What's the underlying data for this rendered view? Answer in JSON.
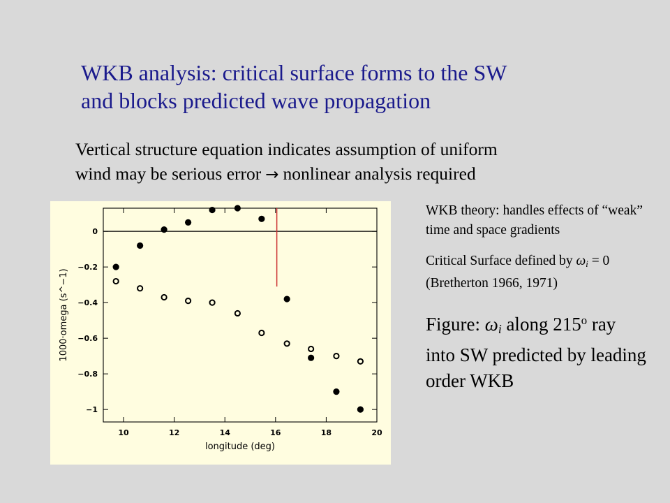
{
  "slide": {
    "title_line1": "WKB analysis: critical surface forms to the SW",
    "title_line2": "and blocks predicted wave propagation",
    "subtitle_line1": "Vertical structure equation indicates assumption of uniform",
    "subtitle_line2_start": "wind may be serious error",
    "subtitle_arrow": "→",
    "subtitle_line2_end": "nonlinear analysis required"
  },
  "notes": {
    "wkb_theory": "WKB theory: handles effects of “weak” time and space gradients",
    "critical_prefix": "Critical Surface defined by",
    "critical_omega": "ω",
    "critical_subscript": "i",
    "critical_suffix": "= 0 (Bretherton 1966, 1971)",
    "figure_prefix": "Figure:",
    "figure_omega": "ω",
    "figure_subscript": "i",
    "figure_middle": "along 215",
    "figure_superscript": "o",
    "figure_suffix": "ray into SW predicted by leading order WKB"
  },
  "colors": {
    "background": "#d9d9d9",
    "title": "#1a1a8c",
    "panel": "#fffde0",
    "critical_line": "#cc3333"
  },
  "chart_data": {
    "type": "scatter",
    "xlabel": "longitude (deg)",
    "ylabel": "1000·omega (s^−1)",
    "xlim": [
      9.2,
      20
    ],
    "ylim": [
      -1.07,
      0.13
    ],
    "xticks": [
      10,
      12,
      14,
      16,
      18,
      20
    ],
    "yticks": [
      0,
      -0.2,
      -0.4,
      -0.6,
      -0.8,
      -1
    ],
    "ytick_labels": [
      "0",
      "−0.2",
      "−0.4",
      "−0.6",
      "−0.8",
      "−1"
    ],
    "zero_line": 0,
    "critical_longitude": 16.05,
    "critical_line_y_range": [
      0.13,
      -0.31
    ],
    "series": [
      {
        "marker": "filled",
        "x": [
          9.7,
          10.65,
          11.6,
          12.55,
          13.5,
          14.5,
          15.45,
          16.45,
          17.4,
          18.4,
          19.35
        ],
        "values": [
          -0.2,
          -0.08,
          0.01,
          0.05,
          0.12,
          0.13,
          0.07,
          -0.38,
          -0.71,
          -0.9,
          -1.0
        ]
      },
      {
        "marker": "open",
        "x": [
          9.7,
          10.65,
          11.6,
          12.55,
          13.5,
          14.5,
          15.45,
          16.45,
          17.4,
          18.4,
          19.35
        ],
        "values": [
          -0.28,
          -0.32,
          -0.37,
          -0.39,
          -0.4,
          -0.46,
          -0.57,
          -0.63,
          -0.66,
          -0.7,
          -0.73
        ]
      }
    ]
  }
}
